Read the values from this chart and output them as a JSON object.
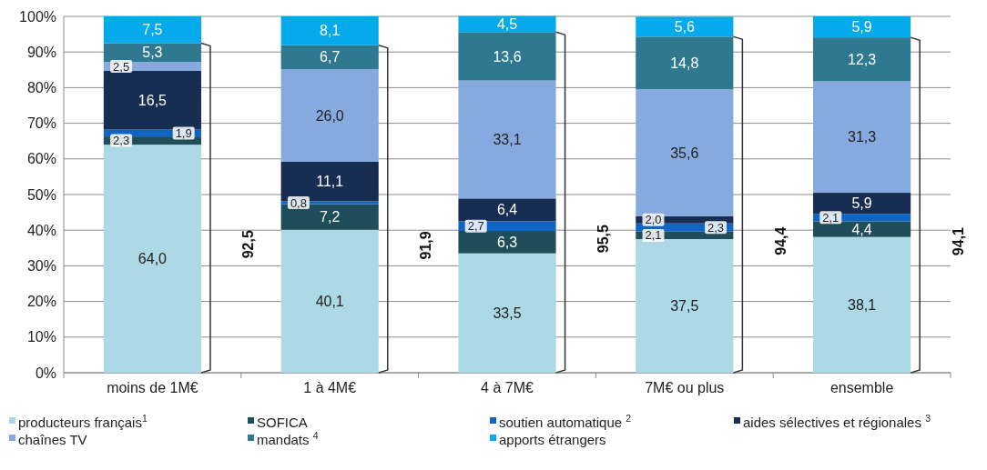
{
  "chart_data": {
    "type": "bar",
    "stacked": true,
    "categories": [
      "moins de 1M€",
      "1 à 4M€",
      "4 à 7M€",
      "7M€ ou plus",
      "ensemble"
    ],
    "series": [
      {
        "name": "producteurs français$^{1}$",
        "color": "#add8e6",
        "values": [
          64.0,
          40.1,
          33.5,
          37.5,
          38.1
        ],
        "value_labels": [
          "64,0",
          "40,1",
          "33,5",
          "37,5",
          "38,1"
        ]
      },
      {
        "name": "SOFICA",
        "color": "#1f4e5a",
        "values": [
          2.3,
          7.2,
          6.3,
          2.1,
          4.4
        ],
        "value_labels": [
          "2,3",
          "7,2",
          "6,3",
          "2,1",
          "4,4"
        ]
      },
      {
        "name": "soutien automatique $^{2}$",
        "color": "#0f64c4",
        "values": [
          1.9,
          0.8,
          2.7,
          2.3,
          2.1
        ],
        "value_labels": [
          "1,9",
          "0,8",
          "2,7",
          "2,3",
          "2,1"
        ]
      },
      {
        "name": "aides sélectives et régionales $^{3}$",
        "color": "#172d52",
        "values": [
          16.5,
          11.1,
          6.4,
          2.0,
          5.9
        ],
        "value_labels": [
          "16,5",
          "11,1",
          "6,4",
          "2,0",
          "5,9"
        ]
      },
      {
        "name": "chaînes TV",
        "color": "#86aadf",
        "values": [
          2.5,
          26.0,
          33.1,
          35.6,
          31.3
        ],
        "value_labels": [
          "2,5",
          "26,0",
          "33,1",
          "35,6",
          "31,3"
        ]
      },
      {
        "name": "mandats $^{4}$",
        "color": "#2e7890",
        "values": [
          5.3,
          6.7,
          13.6,
          14.8,
          12.3
        ],
        "value_labels": [
          "5,3",
          "6,7",
          "13,6",
          "14,8",
          "12,3"
        ]
      },
      {
        "name": "apports étrangers",
        "color": "#05aaec",
        "values": [
          7.5,
          8.1,
          4.5,
          5.6,
          5.9
        ],
        "value_labels": [
          "7,5",
          "8,1",
          "4,5",
          "5,6",
          "5,9"
        ]
      }
    ],
    "ylim": [
      0,
      100
    ],
    "yticks": [
      {
        "value": 0,
        "label": "0%"
      },
      {
        "value": 10,
        "label": "10%"
      },
      {
        "value": 20,
        "label": "20%"
      },
      {
        "value": 30,
        "label": "30%"
      },
      {
        "value": 40,
        "label": "40%"
      },
      {
        "value": 50,
        "label": "50%"
      },
      {
        "value": 60,
        "label": "60%"
      },
      {
        "value": 70,
        "label": "70%"
      },
      {
        "value": 80,
        "label": "80%"
      },
      {
        "value": 90,
        "label": "90%"
      },
      {
        "value": 100,
        "label": "100%"
      }
    ],
    "grid": "y",
    "legend": "bottom",
    "annotations": [
      "92,5",
      "91,9",
      "95,5",
      "94,4",
      "94,1"
    ]
  }
}
